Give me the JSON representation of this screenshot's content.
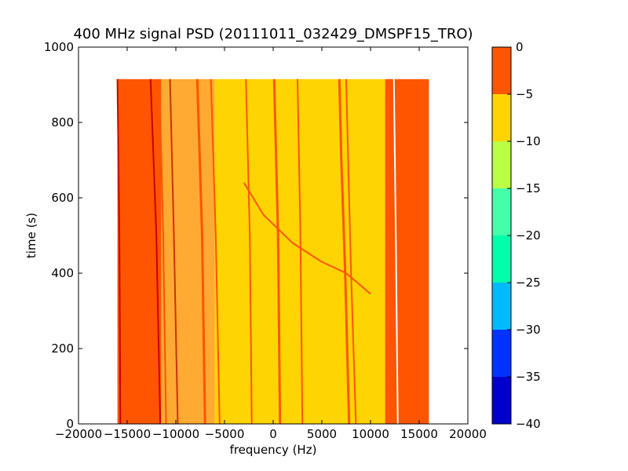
{
  "chart_data": {
    "type": "heatmap",
    "title": "400 MHz signal PSD (20111011_032429_DMSPF15_TRO)",
    "xlabel": "frequency (Hz)",
    "ylabel": "time (s)",
    "xlim": [
      -20000,
      20000
    ],
    "ylim": [
      0,
      1000
    ],
    "x_ticks": [
      -20000,
      -15000,
      -10000,
      -5000,
      0,
      5000,
      10000,
      15000,
      20000
    ],
    "x_tick_labels": [
      "−20000",
      "−15000",
      "−10000",
      "−5000",
      "0",
      "5000",
      "10000",
      "15000",
      "20000"
    ],
    "y_ticks": [
      0,
      200,
      400,
      600,
      800,
      1000
    ],
    "y_tick_labels": [
      "0",
      "200",
      "400",
      "600",
      "800",
      "1000"
    ],
    "data_extent": {
      "freq_min": -16000,
      "freq_max": 16000,
      "time_min": 0,
      "time_max": 915
    },
    "colorbar": {
      "levels": [
        -40,
        -35,
        -30,
        -25,
        -20,
        -15,
        -10,
        -5,
        0
      ],
      "tick_labels": [
        "−40",
        "−35",
        "−30",
        "−25",
        "−20",
        "−15",
        "−10",
        "−5",
        "0"
      ],
      "colors": [
        "#0000cc",
        "#0033ff",
        "#00bbff",
        "#00ffaa",
        "#44ffaa",
        "#bbff44",
        "#ffd400",
        "#ff5500",
        "#cc0000"
      ]
    },
    "regions": [
      {
        "name": "outer-left",
        "from": -16000,
        "to": -11500,
        "color": "#ff5500"
      },
      {
        "name": "mid-left",
        "from": -11500,
        "to": -6000,
        "color": "#ffaa33"
      },
      {
        "name": "center",
        "from": -6000,
        "to": 11500,
        "color": "#ffd400"
      },
      {
        "name": "outer-right",
        "from": 11500,
        "to": 16000,
        "color": "#ff5500"
      }
    ],
    "lines": [
      {
        "points": [
          [
            -15700,
            0
          ],
          [
            -15800,
            500
          ],
          [
            -16000,
            915
          ]
        ],
        "color": "#cc0000",
        "width": 2
      },
      {
        "points": [
          [
            -11600,
            0
          ],
          [
            -12000,
            500
          ],
          [
            -12600,
            915
          ]
        ],
        "color": "#cc0000",
        "width": 2
      },
      {
        "points": [
          [
            -11000,
            0
          ],
          [
            -11300,
            500
          ],
          [
            -11700,
            915
          ]
        ],
        "color": "#ff5500",
        "width": 2
      },
      {
        "points": [
          [
            -9800,
            0
          ],
          [
            -10200,
            500
          ],
          [
            -10600,
            915
          ]
        ],
        "color": "#cc3300",
        "width": 2
      },
      {
        "points": [
          [
            -7000,
            0
          ],
          [
            -7300,
            500
          ],
          [
            -7800,
            915
          ]
        ],
        "color": "#ff5500",
        "width": 3
      },
      {
        "points": [
          [
            -5500,
            0
          ],
          [
            -5900,
            500
          ],
          [
            -6400,
            915
          ]
        ],
        "color": "#ff5500",
        "width": 2
      },
      {
        "points": [
          [
            -2200,
            0
          ],
          [
            -2400,
            500
          ],
          [
            -2800,
            915
          ]
        ],
        "color": "#ff5500",
        "width": 2
      },
      {
        "points": [
          [
            700,
            0
          ],
          [
            500,
            500
          ],
          [
            100,
            915
          ]
        ],
        "color": "#ff5500",
        "width": 3
      },
      {
        "points": [
          [
            3000,
            0
          ],
          [
            2800,
            500
          ],
          [
            2500,
            915
          ]
        ],
        "color": "#ff5500",
        "width": 2
      },
      {
        "points": [
          [
            7800,
            0
          ],
          [
            7400,
            400
          ],
          [
            7000,
            700
          ],
          [
            6800,
            915
          ]
        ],
        "color": "#ff5500",
        "width": 3
      },
      {
        "points": [
          [
            8500,
            0
          ],
          [
            8000,
            400
          ],
          [
            7700,
            700
          ],
          [
            7500,
            915
          ]
        ],
        "color": "#ff5500",
        "width": 2
      },
      {
        "points": [
          [
            12400,
            0
          ],
          [
            12200,
            500
          ],
          [
            12000,
            915
          ]
        ],
        "color": "#ff5500",
        "width": 3
      },
      {
        "points": [
          [
            12800,
            0
          ],
          [
            12600,
            500
          ],
          [
            12400,
            915
          ]
        ],
        "color": "#ffffff",
        "width": 2
      },
      {
        "points": [
          [
            -3000,
            640
          ],
          [
            -1000,
            555
          ],
          [
            2000,
            480
          ],
          [
            5000,
            430
          ],
          [
            7500,
            400
          ],
          [
            10000,
            345
          ]
        ],
        "color": "#ff5500",
        "width": 2
      }
    ]
  }
}
